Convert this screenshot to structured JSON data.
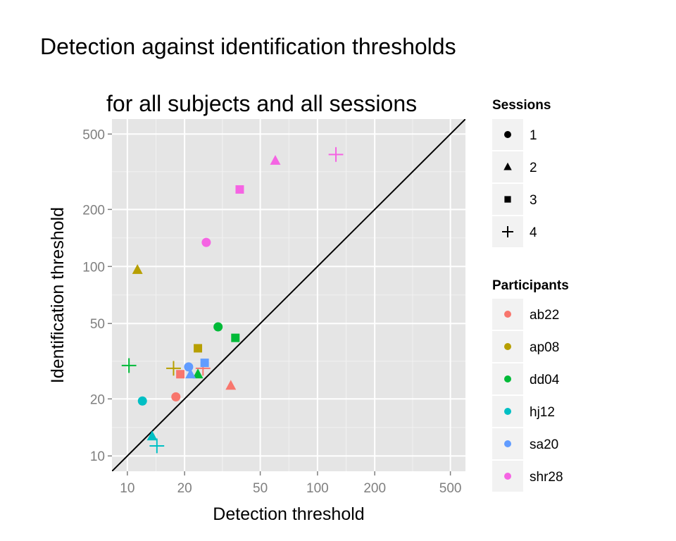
{
  "chart_data": {
    "type": "scatter",
    "title": "Detection against identification thresholds",
    "subtitle": "for all subjects and all sessions",
    "xlabel": "Detection threshold",
    "ylabel": "Identification threshold",
    "x_scale": "log10",
    "y_scale": "log10",
    "xlim": [
      8.3,
      600
    ],
    "ylim": [
      8.3,
      600
    ],
    "x_ticks": [
      10,
      20,
      50,
      100,
      200,
      500
    ],
    "y_ticks": [
      10,
      20,
      50,
      100,
      200,
      500
    ],
    "x_tick_labels": [
      "10",
      "20",
      "50",
      "100",
      "200",
      "500"
    ],
    "y_tick_labels": [
      "10",
      "20",
      "50",
      "100",
      "200",
      "500"
    ],
    "grid": true,
    "reference_line": "y = x",
    "legend_placement": "right",
    "legends": {
      "sessions": {
        "title": "Sessions",
        "items": [
          {
            "label": "1",
            "shape": "circle"
          },
          {
            "label": "2",
            "shape": "triangle"
          },
          {
            "label": "3",
            "shape": "square"
          },
          {
            "label": "4",
            "shape": "plus"
          }
        ]
      },
      "participants": {
        "title": "Participants",
        "items": [
          {
            "label": "ab22",
            "color": "#F8766D"
          },
          {
            "label": "ap08",
            "color": "#B79F00"
          },
          {
            "label": "dd04",
            "color": "#00BA38"
          },
          {
            "label": "hj12",
            "color": "#00BFC4"
          },
          {
            "label": "sa20",
            "color": "#619CFF"
          },
          {
            "label": "shr28",
            "color": "#F564E3"
          }
        ]
      }
    },
    "series": [
      {
        "name": "ab22",
        "color": "#F8766D",
        "points": [
          {
            "session": "1",
            "x": 18,
            "y": 20.5
          },
          {
            "session": "2",
            "x": 35,
            "y": 23.5
          },
          {
            "session": "3",
            "x": 19,
            "y": 27
          },
          {
            "session": "4",
            "x": 25,
            "y": 29
          }
        ]
      },
      {
        "name": "ap08",
        "color": "#B79F00",
        "points": [
          {
            "session": "2",
            "x": 11.3,
            "y": 96
          },
          {
            "session": "3",
            "x": 23.5,
            "y": 37
          },
          {
            "session": "4",
            "x": 17.5,
            "y": 29
          }
        ]
      },
      {
        "name": "dd04",
        "color": "#00BA38",
        "points": [
          {
            "session": "1",
            "x": 30,
            "y": 48
          },
          {
            "session": "2",
            "x": 23.5,
            "y": 27
          },
          {
            "session": "3",
            "x": 37,
            "y": 42
          },
          {
            "session": "4",
            "x": 10.2,
            "y": 30
          }
        ]
      },
      {
        "name": "hj12",
        "color": "#00BFC4",
        "points": [
          {
            "session": "1",
            "x": 12,
            "y": 19.5
          },
          {
            "session": "2",
            "x": 13.5,
            "y": 12.7
          },
          {
            "session": "4",
            "x": 14.3,
            "y": 11.3
          }
        ]
      },
      {
        "name": "sa20",
        "color": "#619CFF",
        "points": [
          {
            "session": "1",
            "x": 21,
            "y": 29.5
          },
          {
            "session": "2",
            "x": 21.5,
            "y": 27
          },
          {
            "session": "3",
            "x": 25.5,
            "y": 31
          }
        ]
      },
      {
        "name": "shr28",
        "color": "#F564E3",
        "points": [
          {
            "session": "1",
            "x": 26,
            "y": 134
          },
          {
            "session": "2",
            "x": 60,
            "y": 362
          },
          {
            "session": "3",
            "x": 39,
            "y": 255
          },
          {
            "session": "4",
            "x": 125,
            "y": 390
          }
        ]
      }
    ]
  }
}
